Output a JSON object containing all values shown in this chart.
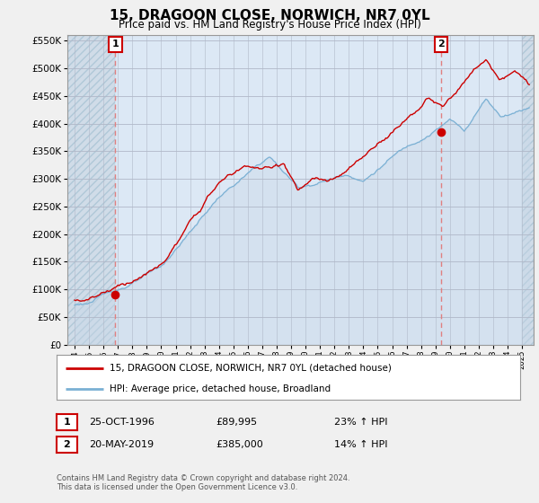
{
  "title": "15, DRAGOON CLOSE, NORWICH, NR7 0YL",
  "subtitle": "Price paid vs. HM Land Registry's House Price Index (HPI)",
  "legend_line1": "15, DRAGOON CLOSE, NORWICH, NR7 0YL (detached house)",
  "legend_line2": "HPI: Average price, detached house, Broadland",
  "annotation1_label": "1",
  "annotation1_date": "25-OCT-1996",
  "annotation1_price": "£89,995",
  "annotation1_hpi": "23% ↑ HPI",
  "annotation2_label": "2",
  "annotation2_date": "20-MAY-2019",
  "annotation2_price": "£385,000",
  "annotation2_hpi": "14% ↑ HPI",
  "footnote": "Contains HM Land Registry data © Crown copyright and database right 2024.\nThis data is licensed under the Open Government Licence v3.0.",
  "ylim": [
    0,
    560000
  ],
  "yticks": [
    0,
    50000,
    100000,
    150000,
    200000,
    250000,
    300000,
    350000,
    400000,
    450000,
    500000,
    550000
  ],
  "hpi_color": "#7ab0d4",
  "price_color": "#cc0000",
  "dashed_color": "#e08080",
  "marker1_x": 1996.82,
  "marker1_y": 89995,
  "marker2_x": 2019.39,
  "marker2_y": 385000,
  "bg_color": "#f0f0f0",
  "plot_bg": "#dce8f5",
  "hatch_color": "#c8d8e8",
  "xlim_left": 1993.5,
  "xlim_right": 2025.8
}
